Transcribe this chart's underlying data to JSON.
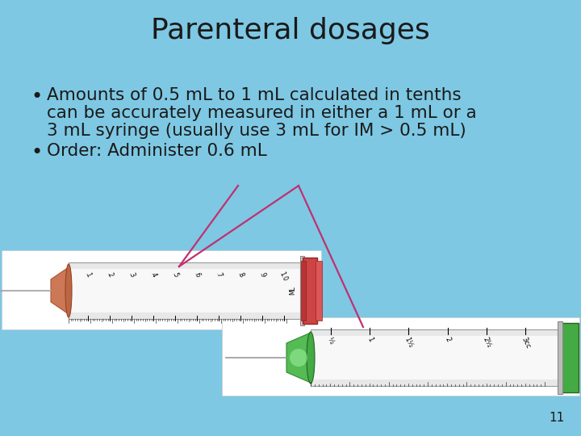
{
  "title": "Parenteral dosages",
  "title_fontsize": 26,
  "background_color": "#7ec8e3",
  "bullet1_line1": "Amounts of 0.5 mL to 1 mL calculated in tenths",
  "bullet1_line2": "can be accurately measured in either a 1 mL or a",
  "bullet1_line3": "3 mL syringe (usually use 3 mL for IM > 0.5 mL)",
  "bullet2": "Order: Administer 0.6 mL",
  "bullet_fontsize": 15.5,
  "text_color": "#1a1a1a",
  "page_number": "11",
  "line_color": "#c03070",
  "syr1_bg": [
    0.0,
    0.285,
    0.565,
    0.195
  ],
  "syr2_bg": [
    0.375,
    0.07,
    0.625,
    0.195
  ]
}
